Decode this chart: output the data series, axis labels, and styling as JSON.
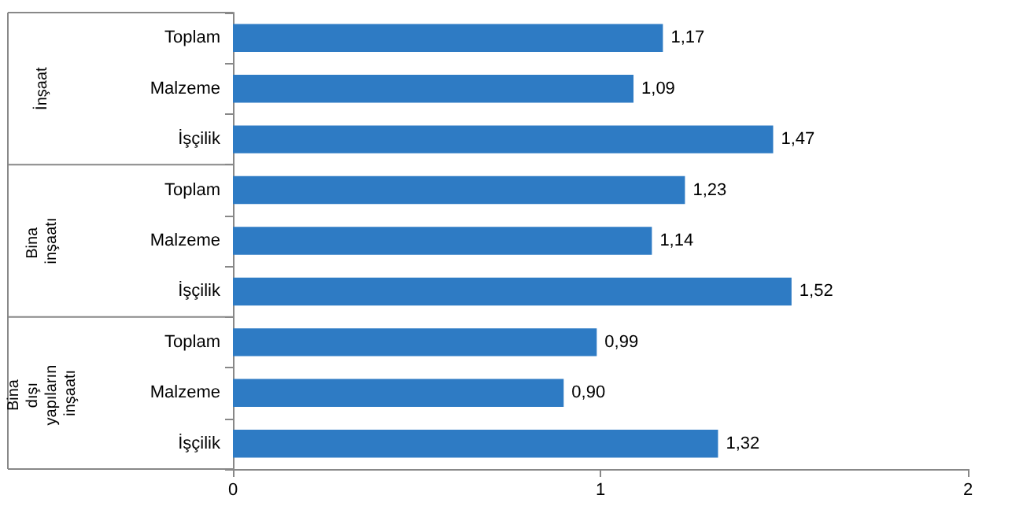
{
  "chart_data": {
    "type": "bar",
    "orientation": "horizontal",
    "categories": [
      "Toplam",
      "Malzeme",
      "İşçilik",
      "Toplam",
      "Malzeme",
      "İşçilik",
      "Toplam",
      "Malzeme",
      "İşçilik"
    ],
    "values": [
      1.17,
      1.09,
      1.47,
      1.23,
      1.14,
      1.52,
      0.99,
      0.9,
      1.32
    ],
    "value_labels": [
      "1,17",
      "1,09",
      "1,47",
      "1,23",
      "1,14",
      "1,52",
      "0,99",
      "0,90",
      "1,32"
    ],
    "color": "#2e7bc4",
    "xlim": [
      0,
      2
    ],
    "xticks": [
      0,
      1,
      2
    ],
    "annotations": [
      "İnşaat",
      "Bina inşaatı",
      "Bina dışı yapıların inşaatı"
    ]
  }
}
